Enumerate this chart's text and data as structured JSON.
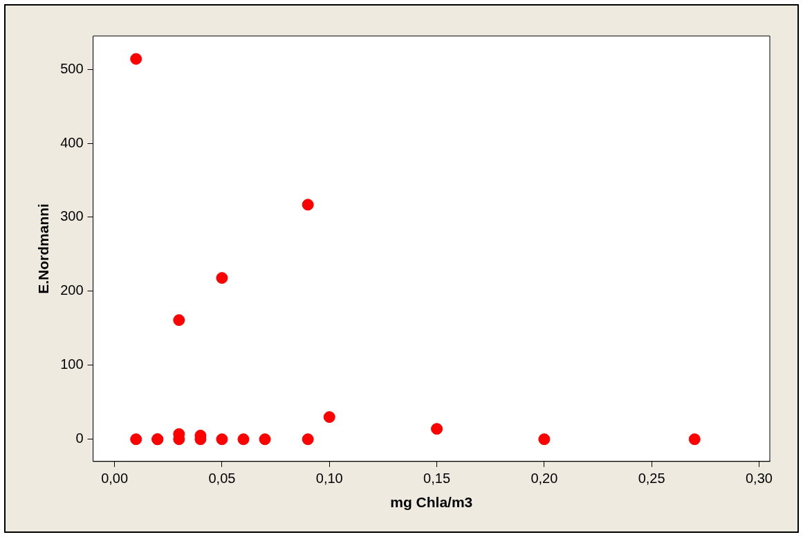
{
  "chart_data": {
    "type": "scatter",
    "xlabel": "mg Chla/m3",
    "ylabel": "E.Nordmanni",
    "x": [
      0.01,
      0.01,
      0.02,
      0.02,
      0.03,
      0.03,
      0.03,
      0.04,
      0.04,
      0.05,
      0.05,
      0.06,
      0.07,
      0.09,
      0.09,
      0.1,
      0.15,
      0.2,
      0.27
    ],
    "series": [
      {
        "color": "#ff0000",
        "values": [
          514,
          0,
          0,
          0,
          161,
          0,
          7,
          0,
          5,
          218,
          0,
          0,
          0,
          317,
          0,
          30,
          14,
          0,
          0
        ]
      }
    ],
    "xlim": [
      -0.01,
      0.305
    ],
    "ylim": [
      -30,
      545
    ],
    "xticks": [
      {
        "value": 0,
        "label": "0,00"
      },
      {
        "value": 0.05,
        "label": "0,05"
      },
      {
        "value": 0.1,
        "label": "0,10"
      },
      {
        "value": 0.15,
        "label": "0,15"
      },
      {
        "value": 0.2,
        "label": "0,20"
      },
      {
        "value": 0.25,
        "label": "0,25"
      },
      {
        "value": 0.3,
        "label": "0,30"
      }
    ],
    "yticks": [
      0,
      100,
      200,
      300,
      400,
      500
    ],
    "grid": false,
    "legend": false,
    "marker": "circle"
  }
}
